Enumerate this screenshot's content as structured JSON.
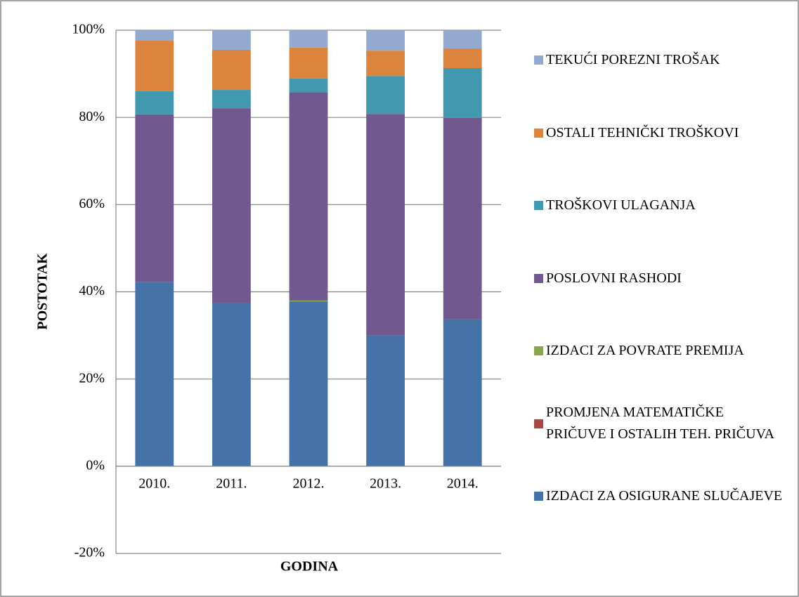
{
  "chart_data": {
    "type": "stacked_bar",
    "xlabel": "GODINA",
    "ylabel": "POSTOTAK",
    "categories": [
      "2010.",
      "2011.",
      "2012.",
      "2013.",
      "2014."
    ],
    "series": [
      {
        "name": "IZDACI ZA OSIGURANE SLUČAJEVE",
        "color": "#4572a7",
        "values": [
          42.3,
          37.5,
          37.8,
          30.0,
          33.7
        ]
      },
      {
        "name": "PROMJENA MATEMATIČKE PRIČUVE I OSTALIH TEH. PRIČUVA",
        "color": "#aa4643",
        "values": [
          0,
          0,
          0,
          0,
          0
        ]
      },
      {
        "name": "IZDACI ZA POVRATE PREMIJA",
        "color": "#89a54e",
        "values": [
          0,
          0,
          0.2,
          0,
          0
        ]
      },
      {
        "name": "POSLOVNI RASHODI",
        "color": "#71588f",
        "values": [
          38.4,
          44.6,
          47.8,
          50.8,
          46.2
        ]
      },
      {
        "name": "TROŠKOVI ULAGANJA",
        "color": "#4198af",
        "values": [
          5.3,
          4.2,
          3.1,
          8.7,
          11.4
        ]
      },
      {
        "name": "OSTALI TEHNIČKI TROŠKOVI",
        "color": "#db843d",
        "values": [
          11.7,
          9.2,
          7.1,
          5.8,
          4.5
        ]
      },
      {
        "name": "TEKUĆI POREZNI TROŠAK",
        "color": "#93a9cf",
        "values": [
          2.3,
          4.5,
          4.0,
          4.7,
          4.2
        ]
      }
    ],
    "ylim": [
      -20,
      100
    ],
    "yticks": [
      {
        "value": -20,
        "label": "-20%"
      },
      {
        "value": 0,
        "label": "0%"
      },
      {
        "value": 20,
        "label": "20%"
      },
      {
        "value": 40,
        "label": "40%"
      },
      {
        "value": 60,
        "label": "60%"
      },
      {
        "value": 80,
        "label": "80%"
      },
      {
        "value": 100,
        "label": "100%"
      }
    ],
    "grid": true,
    "legend": "right"
  }
}
